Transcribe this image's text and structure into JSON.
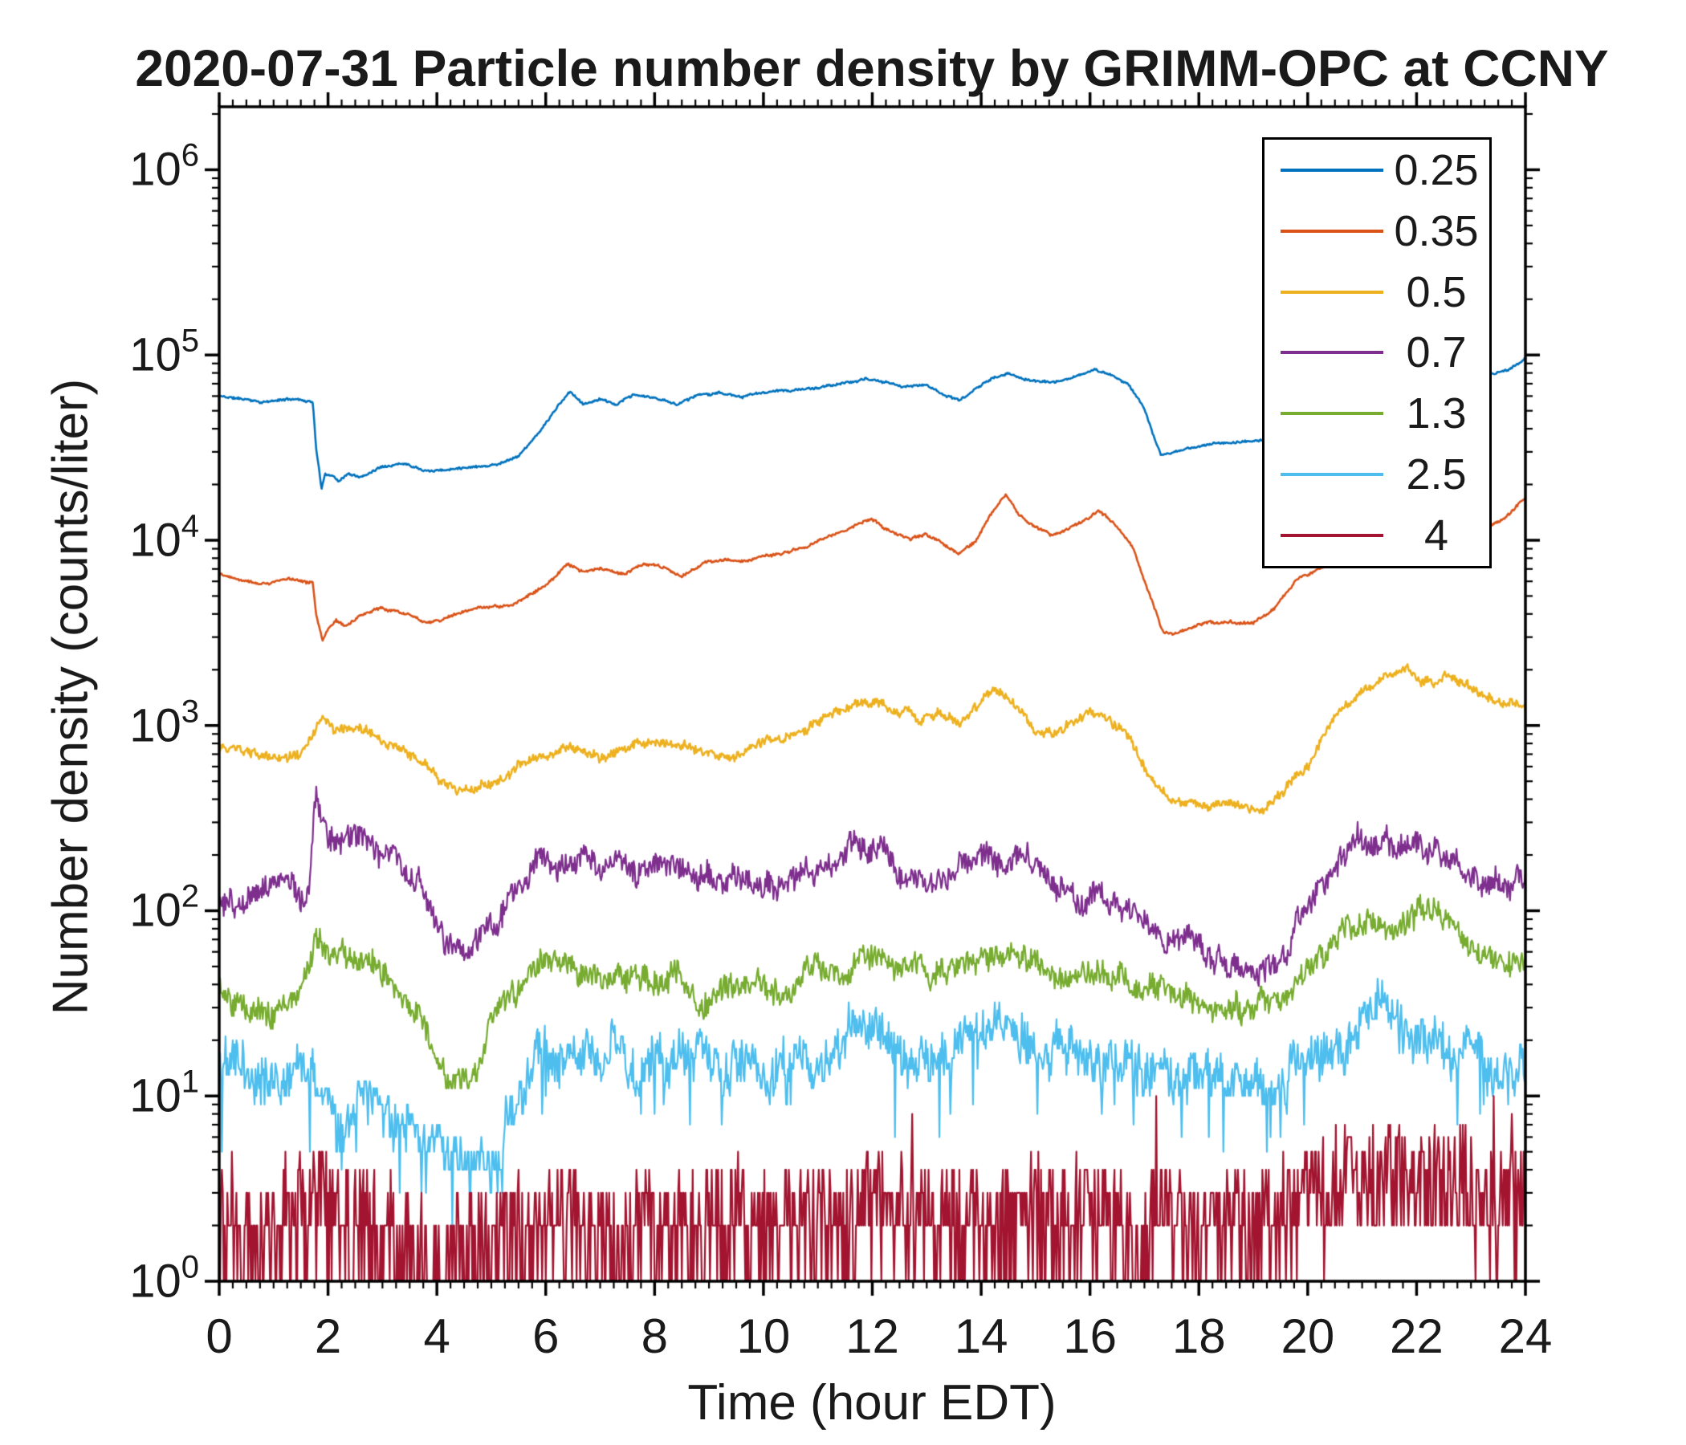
{
  "chart_data": {
    "type": "line",
    "title": "2020-07-31 Particle number density by GRIMM-OPC at CCNY",
    "xlabel": "Time (hour EDT)",
    "ylabel": "Number density (counts/liter)",
    "xlim": [
      0,
      24
    ],
    "x_ticks": [
      0,
      2,
      4,
      6,
      8,
      10,
      12,
      14,
      16,
      18,
      20,
      22,
      24
    ],
    "x_minor_step_hours": 0.25,
    "y_scale": "log10",
    "y_tick_exponents": [
      0,
      1,
      2,
      3,
      4,
      5,
      6
    ],
    "ylim_log10": [
      0,
      6.34
    ],
    "grid": false,
    "axis_color": "#000000",
    "legend_position": "top-right",
    "series": [
      {
        "name": "0.25",
        "color": "#0072BD",
        "noise": {
          "ou": 0.008,
          "hf": 0.005
        },
        "seed": 11,
        "keypoints": {
          "t": [
            0,
            0.8,
            1.4,
            1.72,
            1.78,
            1.88,
            1.95,
            2.1,
            2.2,
            2.35,
            2.6,
            3.0,
            3.4,
            3.8,
            4.2,
            4.7,
            5.1,
            5.5,
            5.9,
            6.2,
            6.45,
            6.7,
            7.0,
            7.3,
            7.6,
            8.0,
            8.4,
            8.8,
            9.2,
            9.6,
            10.0,
            10.5,
            11.0,
            11.5,
            11.9,
            12.2,
            12.6,
            13.0,
            13.35,
            13.6,
            13.9,
            14.2,
            14.5,
            14.8,
            15.1,
            15.4,
            15.8,
            16.1,
            16.4,
            16.7,
            17.0,
            17.15,
            17.3,
            17.5,
            17.8,
            18.2,
            18.7,
            19.2,
            20.0,
            21.0,
            22.0,
            23.0,
            23.4,
            23.7,
            24.0
          ],
          "v": [
            60000,
            56000,
            58000,
            56000,
            32000,
            19000,
            23000,
            22500,
            21000,
            23000,
            22000,
            25500,
            26500,
            24500,
            24500,
            25500,
            26000,
            29000,
            39000,
            52000,
            63000,
            54000,
            58000,
            53000,
            60000,
            58000,
            54000,
            61000,
            63000,
            59000,
            62000,
            64000,
            66000,
            70000,
            74000,
            71000,
            68000,
            69000,
            61000,
            57000,
            66000,
            75000,
            79000,
            74000,
            72000,
            71000,
            77000,
            83000,
            78000,
            70000,
            52000,
            38000,
            29000,
            29000,
            31000,
            33000,
            34000,
            35000,
            40000,
            50000,
            63000,
            78000,
            80000,
            84000,
            96000
          ]
        }
      },
      {
        "name": "0.35",
        "color": "#D95319",
        "noise": {
          "ou": 0.012,
          "hf": 0.006
        },
        "seed": 22,
        "keypoints": {
          "t": [
            0,
            0.8,
            1.4,
            1.72,
            1.78,
            1.9,
            2.0,
            2.15,
            2.3,
            2.6,
            3.0,
            3.4,
            3.8,
            4.2,
            4.6,
            5.0,
            5.4,
            5.8,
            6.1,
            6.4,
            6.7,
            7.0,
            7.4,
            7.8,
            8.1,
            8.5,
            8.9,
            9.3,
            9.7,
            10.1,
            10.5,
            10.9,
            11.2,
            11.6,
            12.0,
            12.3,
            12.7,
            13.0,
            13.3,
            13.6,
            13.9,
            14.2,
            14.45,
            14.7,
            15.0,
            15.3,
            15.6,
            15.9,
            16.15,
            16.5,
            16.8,
            17.1,
            17.35,
            17.6,
            18.0,
            18.5,
            19.0,
            19.4,
            19.8,
            20.5,
            21.5,
            22.5,
            23.2,
            23.6,
            24.0
          ],
          "v": [
            6600,
            6000,
            6200,
            6000,
            4000,
            2900,
            3400,
            3800,
            3500,
            3900,
            4300,
            4100,
            3700,
            3900,
            4200,
            4300,
            4400,
            5200,
            6200,
            7400,
            6600,
            6900,
            6600,
            7300,
            7000,
            6400,
            7600,
            7900,
            7700,
            8300,
            8800,
            9500,
            10500,
            11500,
            13000,
            11200,
            10000,
            10600,
            9500,
            8600,
            10000,
            14500,
            17500,
            13500,
            11800,
            10500,
            11500,
            13000,
            14500,
            12000,
            9000,
            5000,
            3200,
            3200,
            3500,
            3700,
            3600,
            4200,
            6000,
            7500,
            9000,
            10500,
            11500,
            13000,
            17000
          ]
        }
      },
      {
        "name": "0.5",
        "color": "#EDB120",
        "noise": {
          "ou": 0.04,
          "hf": 0.02
        },
        "seed": 33,
        "keypoints": {
          "t": [
            0,
            0.5,
            1.0,
            1.5,
            1.75,
            1.9,
            2.1,
            2.4,
            2.7,
            3.0,
            3.3,
            3.7,
            4.0,
            4.3,
            4.7,
            5.0,
            5.5,
            6.0,
            6.5,
            7.0,
            7.5,
            8.0,
            8.3,
            8.7,
            9.0,
            9.5,
            10.0,
            10.5,
            11.0,
            11.5,
            12.0,
            12.4,
            12.8,
            13.2,
            13.6,
            14.0,
            14.3,
            14.7,
            15.0,
            15.5,
            16.0,
            16.3,
            16.7,
            17.0,
            17.5,
            18.0,
            18.5,
            19.0,
            19.5,
            20.0,
            20.5,
            21.0,
            21.5,
            21.8,
            22.2,
            22.6,
            23.0,
            23.5,
            24.0
          ],
          "v": [
            760,
            700,
            650,
            700,
            900,
            1150,
            950,
            870,
            930,
            820,
            700,
            580,
            460,
            420,
            440,
            500,
            590,
            650,
            700,
            660,
            750,
            860,
            780,
            690,
            660,
            700,
            800,
            900,
            1100,
            1280,
            1400,
            1180,
            1100,
            1150,
            1000,
            1250,
            1430,
            1250,
            1020,
            950,
            1100,
            1000,
            820,
            560,
            400,
            350,
            380,
            360,
            420,
            620,
            1100,
            1600,
            2000,
            2100,
            2000,
            1880,
            1550,
            1320,
            1200
          ]
        }
      },
      {
        "name": "0.7",
        "color": "#7E2F8E",
        "noise": {
          "ou": 0.095,
          "hf": 0.06
        },
        "seed": 44,
        "keypoints": {
          "t": [
            0,
            0.4,
            0.8,
            1.1,
            1.4,
            1.65,
            1.78,
            1.85,
            2.0,
            2.2,
            2.5,
            2.8,
            3.1,
            3.4,
            3.7,
            4.0,
            4.3,
            4.6,
            5.0,
            5.3,
            5.7,
            6.0,
            6.3,
            6.7,
            7.0,
            7.5,
            8.0,
            8.5,
            9.0,
            9.5,
            10.0,
            10.5,
            11.0,
            11.5,
            12.0,
            12.5,
            13.0,
            13.5,
            14.0,
            14.5,
            15.0,
            15.5,
            16.0,
            16.5,
            17.0,
            17.5,
            18.0,
            18.5,
            19.0,
            19.5,
            20.0,
            20.5,
            21.0,
            21.5,
            22.0,
            22.5,
            23.0,
            23.5,
            24.0
          ],
          "v": [
            110,
            100,
            120,
            130,
            118,
            112,
            420,
            330,
            260,
            230,
            250,
            225,
            210,
            195,
            150,
            92,
            72,
            62,
            100,
            130,
            155,
            180,
            200,
            178,
            170,
            182,
            160,
            140,
            132,
            140,
            152,
            162,
            180,
            200,
            215,
            180,
            168,
            160,
            180,
            198,
            160,
            132,
            130,
            110,
            90,
            72,
            60,
            55,
            52,
            70,
            120,
            180,
            225,
            258,
            248,
            218,
            182,
            162,
            150
          ]
        }
      },
      {
        "name": "1.3",
        "color": "#77AC30",
        "noise": {
          "ou": 0.095,
          "hf": 0.06,
          "round": true
        },
        "seed": 55,
        "keypoints": {
          "t": [
            0,
            0.5,
            1.0,
            1.5,
            1.78,
            2.0,
            2.5,
            3.0,
            3.5,
            4.0,
            4.3,
            4.6,
            5.0,
            5.5,
            6.0,
            6.5,
            7.0,
            7.5,
            8.0,
            8.5,
            9.0,
            9.5,
            10.0,
            10.5,
            11.0,
            11.5,
            12.0,
            12.5,
            13.0,
            13.5,
            14.0,
            14.5,
            15.0,
            15.5,
            16.0,
            16.5,
            17.0,
            17.5,
            18.0,
            18.5,
            19.0,
            19.5,
            20.0,
            20.5,
            21.0,
            21.5,
            22.0,
            22.5,
            23.0,
            23.5,
            24.0
          ],
          "v": [
            40,
            34,
            30,
            35,
            88,
            68,
            58,
            50,
            32,
            16,
            12,
            10,
            24,
            34,
            44,
            50,
            46,
            40,
            40,
            37,
            35,
            38,
            40,
            45,
            50,
            56,
            60,
            50,
            46,
            45,
            50,
            56,
            46,
            40,
            45,
            40,
            34,
            30,
            27,
            25,
            25,
            34,
            50,
            68,
            88,
            100,
            92,
            84,
            70,
            52,
            46
          ]
        }
      },
      {
        "name": "2.5",
        "color": "#4DBEEE",
        "noise": {
          "ou": 0.15,
          "hf": 0.11,
          "round": true,
          "dip_p": 0.05,
          "dip": 0.4
        },
        "seed": 66,
        "keypoints": {
          "t": [
            0,
            0.5,
            1.0,
            1.5,
            2.0,
            2.5,
            3.0,
            3.5,
            4.0,
            4.5,
            5.0,
            5.5,
            6.0,
            6.5,
            7.0,
            7.5,
            8.0,
            8.5,
            9.0,
            9.5,
            10.0,
            10.5,
            11.0,
            11.5,
            12.0,
            12.5,
            13.0,
            13.5,
            14.0,
            14.5,
            15.0,
            15.5,
            16.0,
            16.5,
            17.0,
            17.5,
            18.0,
            18.5,
            19.0,
            19.5,
            20.0,
            20.5,
            21.0,
            21.5,
            22.0,
            22.5,
            23.0,
            23.5,
            24.0
          ],
          "v": [
            17,
            15,
            14,
            17,
            11,
            8,
            10,
            8,
            6,
            5,
            6,
            8,
            12,
            14,
            13,
            13,
            14,
            13,
            14,
            15,
            16,
            15,
            16,
            18,
            20,
            16,
            15,
            14,
            16,
            18,
            15,
            13,
            14,
            13,
            12,
            11,
            12,
            11,
            12,
            14,
            16,
            18,
            20,
            22,
            20,
            20,
            18,
            16,
            15
          ]
        }
      },
      {
        "name": "4",
        "color": "#A2142F",
        "noise": {
          "ou": 0.1,
          "hf": 0.31,
          "round": true,
          "spike_p": 0.012,
          "spike": 0.45
        },
        "seed": 77,
        "keypoints": {
          "t": [
            0,
            1,
            2,
            3,
            3.5,
            4,
            4.5,
            5,
            5.5,
            6,
            7,
            8,
            9,
            10,
            11,
            11.5,
            12,
            13,
            14,
            15,
            16,
            17,
            18,
            19,
            20,
            20.5,
            21,
            22,
            23,
            24
          ],
          "v": [
            2.2,
            2.2,
            2.4,
            1.6,
            1.3,
            1.1,
            1.2,
            1.4,
            1.6,
            1.8,
            1.9,
            1.9,
            1.8,
            1.9,
            2.2,
            2.6,
            2.4,
            2.1,
            2.2,
            1.9,
            2.1,
            1.8,
            1.8,
            2.0,
            2.8,
            3.3,
            3.5,
            3.2,
            2.9,
            2.8
          ]
        }
      }
    ]
  }
}
